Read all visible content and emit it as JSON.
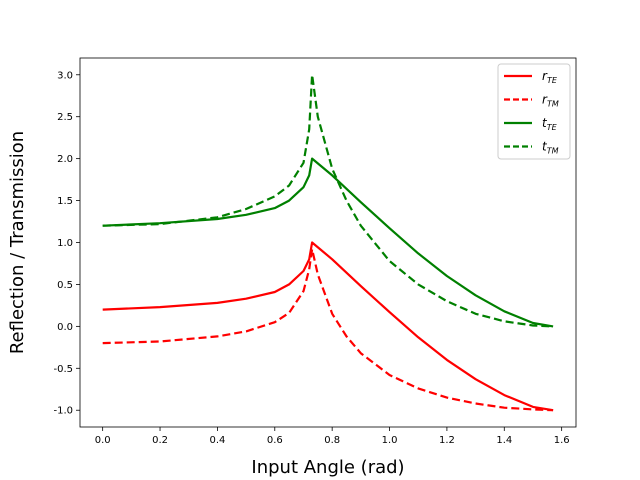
{
  "chart_data": {
    "type": "line",
    "xlabel": "Input Angle (rad)",
    "ylabel": "Reflection / Transmission",
    "xlim": [
      -0.079,
      1.65
    ],
    "ylim": [
      -1.2,
      3.2
    ],
    "xticks": [
      "0.0",
      "0.2",
      "0.4",
      "0.6",
      "0.8",
      "1.0",
      "1.2",
      "1.4",
      "1.6"
    ],
    "yticks": [
      "-1.0",
      "-0.5",
      "0.0",
      "0.5",
      "1.0",
      "1.5",
      "2.0",
      "2.5",
      "3.0"
    ],
    "legend_position": "top-right",
    "grid": false,
    "series": [
      {
        "name": "r_TE",
        "label_main": "r",
        "label_sub": "TE",
        "color": "#ff0000",
        "dash": "solid",
        "x": [
          0.0,
          0.2,
          0.4,
          0.5,
          0.6,
          0.65,
          0.7,
          0.72,
          0.73,
          0.8,
          0.9,
          1.0,
          1.1,
          1.2,
          1.3,
          1.4,
          1.5,
          1.57
        ],
        "y": [
          0.2,
          0.23,
          0.28,
          0.33,
          0.41,
          0.5,
          0.66,
          0.8,
          1.0,
          0.8,
          0.48,
          0.17,
          -0.13,
          -0.4,
          -0.63,
          -0.82,
          -0.96,
          -1.0
        ]
      },
      {
        "name": "r_TM",
        "label_main": "r",
        "label_sub": "TM",
        "color": "#ff0000",
        "dash": "dashed",
        "x": [
          0.0,
          0.2,
          0.4,
          0.5,
          0.6,
          0.65,
          0.7,
          0.72,
          0.73,
          0.75,
          0.8,
          0.85,
          0.9,
          1.0,
          1.1,
          1.2,
          1.3,
          1.4,
          1.5,
          1.57
        ],
        "y": [
          -0.2,
          -0.18,
          -0.12,
          -0.06,
          0.05,
          0.16,
          0.42,
          0.68,
          0.92,
          0.62,
          0.15,
          -0.12,
          -0.32,
          -0.58,
          -0.74,
          -0.85,
          -0.92,
          -0.97,
          -0.99,
          -1.0
        ]
      },
      {
        "name": "t_TE",
        "label_main": "t",
        "label_sub": "TE",
        "color": "#008000",
        "dash": "solid",
        "x": [
          0.0,
          0.2,
          0.4,
          0.5,
          0.6,
          0.65,
          0.7,
          0.72,
          0.73,
          0.8,
          0.9,
          1.0,
          1.1,
          1.2,
          1.3,
          1.4,
          1.5,
          1.57
        ],
        "y": [
          1.2,
          1.23,
          1.28,
          1.33,
          1.41,
          1.5,
          1.66,
          1.8,
          2.0,
          1.8,
          1.48,
          1.17,
          0.87,
          0.6,
          0.37,
          0.18,
          0.04,
          0.0
        ]
      },
      {
        "name": "t_TM",
        "label_main": "t",
        "label_sub": "TM",
        "color": "#008000",
        "dash": "dashed",
        "x": [
          0.0,
          0.2,
          0.4,
          0.5,
          0.6,
          0.65,
          0.7,
          0.72,
          0.73,
          0.75,
          0.8,
          0.85,
          0.9,
          1.0,
          1.1,
          1.2,
          1.3,
          1.4,
          1.5,
          1.57
        ],
        "y": [
          1.2,
          1.22,
          1.3,
          1.4,
          1.55,
          1.68,
          1.95,
          2.35,
          3.0,
          2.5,
          1.88,
          1.5,
          1.2,
          0.78,
          0.5,
          0.3,
          0.15,
          0.06,
          0.01,
          0.0
        ]
      }
    ]
  }
}
